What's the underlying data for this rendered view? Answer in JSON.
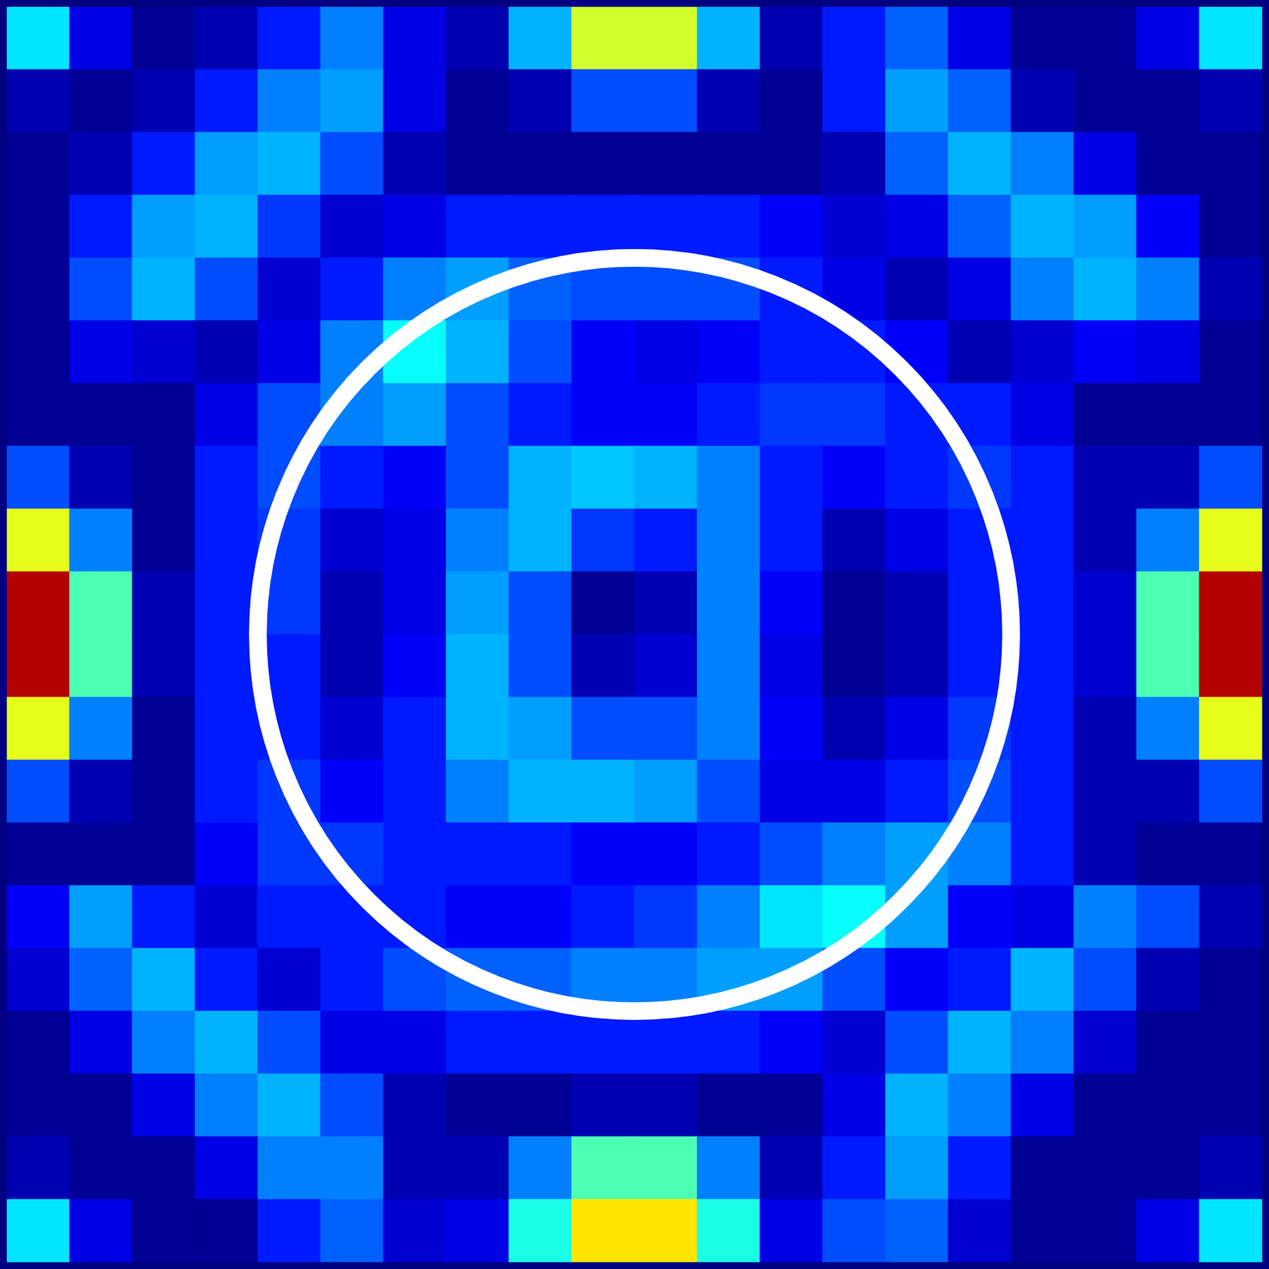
{
  "chart_data": {
    "type": "heatmap",
    "xlim": [
      -1,
      1
    ],
    "ylim": [
      -1,
      1
    ],
    "tick_labels": false,
    "grid": false,
    "circle": {
      "x": 0,
      "y": 0,
      "r": 0.6,
      "color": "#ffffff"
    },
    "cells": [
      [
        0.35,
        0.1,
        0.02,
        0.05,
        0.15,
        0.25,
        0.1,
        0.05,
        0.3,
        0.58,
        0.58,
        0.3,
        0.05,
        0.15,
        0.22,
        0.1,
        0.02,
        0.02,
        0.1,
        0.35
      ],
      [
        0.05,
        0.02,
        0.05,
        0.15,
        0.25,
        0.28,
        0.1,
        0.02,
        0.05,
        0.2,
        0.2,
        0.05,
        0.02,
        0.15,
        0.28,
        0.22,
        0.05,
        0.02,
        0.02,
        0.05
      ],
      [
        0.02,
        0.05,
        0.15,
        0.28,
        0.3,
        0.2,
        0.05,
        0.02,
        0.02,
        0.02,
        0.02,
        0.02,
        0.02,
        0.05,
        0.22,
        0.3,
        0.25,
        0.1,
        0.02,
        0.02
      ],
      [
        0.02,
        0.15,
        0.28,
        0.3,
        0.18,
        0.08,
        0.1,
        0.15,
        0.15,
        0.15,
        0.15,
        0.15,
        0.12,
        0.08,
        0.1,
        0.22,
        0.3,
        0.28,
        0.12,
        0.02
      ],
      [
        0.02,
        0.2,
        0.3,
        0.2,
        0.08,
        0.15,
        0.25,
        0.28,
        0.22,
        0.2,
        0.2,
        0.2,
        0.15,
        0.1,
        0.05,
        0.1,
        0.25,
        0.3,
        0.25,
        0.05
      ],
      [
        0.02,
        0.1,
        0.08,
        0.05,
        0.1,
        0.25,
        0.38,
        0.3,
        0.2,
        0.12,
        0.1,
        0.12,
        0.15,
        0.15,
        0.12,
        0.05,
        0.08,
        0.12,
        0.1,
        0.02
      ],
      [
        0.02,
        0.02,
        0.02,
        0.1,
        0.2,
        0.25,
        0.28,
        0.2,
        0.15,
        0.12,
        0.12,
        0.15,
        0.18,
        0.18,
        0.15,
        0.15,
        0.1,
        0.02,
        0.02,
        0.02
      ],
      [
        0.2,
        0.05,
        0.02,
        0.15,
        0.2,
        0.15,
        0.12,
        0.2,
        0.3,
        0.32,
        0.3,
        0.25,
        0.15,
        0.12,
        0.15,
        0.18,
        0.15,
        0.05,
        0.05,
        0.2
      ],
      [
        0.6,
        0.25,
        0.02,
        0.15,
        0.18,
        0.08,
        0.1,
        0.25,
        0.3,
        0.18,
        0.15,
        0.25,
        0.15,
        0.05,
        0.1,
        0.15,
        0.15,
        0.05,
        0.25,
        0.6
      ],
      [
        0.95,
        0.45,
        0.05,
        0.15,
        0.18,
        0.05,
        0.1,
        0.28,
        0.2,
        0.02,
        0.05,
        0.25,
        0.12,
        0.02,
        0.05,
        0.15,
        0.15,
        0.08,
        0.45,
        0.95
      ],
      [
        0.95,
        0.45,
        0.05,
        0.15,
        0.15,
        0.05,
        0.12,
        0.3,
        0.2,
        0.05,
        0.08,
        0.25,
        0.1,
        0.02,
        0.05,
        0.15,
        0.15,
        0.08,
        0.45,
        0.95
      ],
      [
        0.6,
        0.25,
        0.02,
        0.15,
        0.15,
        0.08,
        0.15,
        0.3,
        0.28,
        0.2,
        0.2,
        0.25,
        0.12,
        0.05,
        0.1,
        0.18,
        0.15,
        0.05,
        0.25,
        0.6
      ],
      [
        0.2,
        0.05,
        0.02,
        0.15,
        0.18,
        0.12,
        0.15,
        0.25,
        0.3,
        0.3,
        0.28,
        0.2,
        0.1,
        0.1,
        0.15,
        0.2,
        0.15,
        0.05,
        0.05,
        0.2
      ],
      [
        0.02,
        0.02,
        0.02,
        0.12,
        0.18,
        0.18,
        0.15,
        0.15,
        0.15,
        0.12,
        0.12,
        0.15,
        0.2,
        0.25,
        0.28,
        0.25,
        0.15,
        0.05,
        0.02,
        0.02
      ],
      [
        0.12,
        0.28,
        0.15,
        0.08,
        0.15,
        0.15,
        0.15,
        0.12,
        0.12,
        0.15,
        0.18,
        0.25,
        0.35,
        0.38,
        0.28,
        0.12,
        0.1,
        0.25,
        0.2,
        0.05
      ],
      [
        0.08,
        0.22,
        0.3,
        0.15,
        0.08,
        0.15,
        0.2,
        0.22,
        0.22,
        0.25,
        0.25,
        0.28,
        0.28,
        0.2,
        0.12,
        0.15,
        0.3,
        0.2,
        0.05,
        0.02
      ],
      [
        0.02,
        0.1,
        0.25,
        0.3,
        0.2,
        0.1,
        0.1,
        0.15,
        0.15,
        0.15,
        0.15,
        0.15,
        0.12,
        0.08,
        0.2,
        0.3,
        0.25,
        0.08,
        0.02,
        0.02
      ],
      [
        0.02,
        0.02,
        0.1,
        0.25,
        0.3,
        0.2,
        0.05,
        0.02,
        0.02,
        0.05,
        0.05,
        0.02,
        0.02,
        0.1,
        0.3,
        0.25,
        0.1,
        0.02,
        0.02,
        0.02
      ],
      [
        0.05,
        0.02,
        0.02,
        0.1,
        0.25,
        0.25,
        0.05,
        0.05,
        0.25,
        0.45,
        0.45,
        0.25,
        0.05,
        0.15,
        0.28,
        0.15,
        0.02,
        0.02,
        0.02,
        0.05
      ],
      [
        0.35,
        0.1,
        0.02,
        0.02,
        0.15,
        0.22,
        0.08,
        0.1,
        0.4,
        0.65,
        0.65,
        0.4,
        0.1,
        0.2,
        0.22,
        0.08,
        0.02,
        0.02,
        0.1,
        0.35
      ]
    ]
  }
}
